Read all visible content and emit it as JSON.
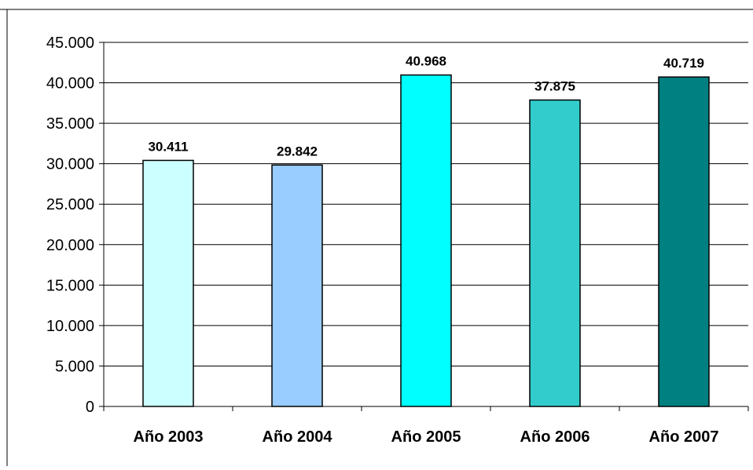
{
  "chart_data": {
    "type": "bar",
    "title": "",
    "xlabel": "",
    "ylabel": "",
    "categories": [
      "Año 2003",
      "Año 2004",
      "Año 2005",
      "Año 2006",
      "Año 2007"
    ],
    "values": [
      30411,
      29842,
      40968,
      37875,
      40719
    ],
    "value_labels": [
      "30.411",
      "29.842",
      "40.968",
      "37.875",
      "40.719"
    ],
    "bar_colors": [
      "#ccffff",
      "#99ccff",
      "#00ffff",
      "#33cccc",
      "#008080"
    ],
    "ylim": [
      0,
      45000
    ],
    "yticks": [
      0,
      5000,
      10000,
      15000,
      20000,
      25000,
      30000,
      35000,
      40000,
      45000
    ],
    "ytick_labels": [
      "0",
      "5.000",
      "10.000",
      "15.000",
      "20.000",
      "25.000",
      "30.000",
      "35.000",
      "40.000",
      "45.000"
    ],
    "grid": true,
    "legend": "none"
  }
}
